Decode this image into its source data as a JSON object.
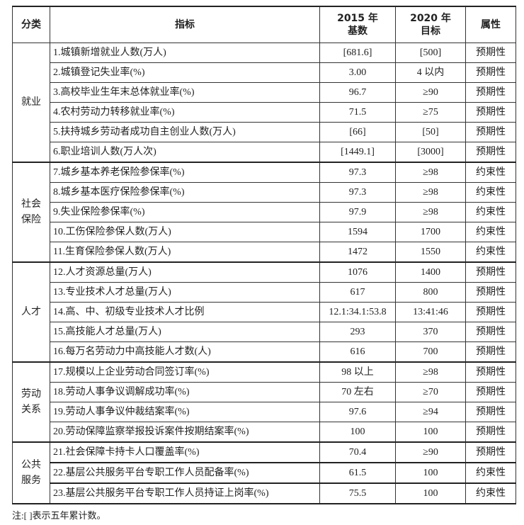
{
  "header": {
    "category": "分类",
    "indicator": "指标",
    "base_line1": "2015 年",
    "base_line2": "基数",
    "target_line1": "2020 年",
    "target_line2": "目标",
    "attribute": "属性"
  },
  "groups": [
    {
      "name_lines": [
        "就业"
      ],
      "rows": [
        {
          "indicator": "1.城镇新增就业人数(万人)",
          "base": "[681.6]",
          "target": "[500]",
          "attribute": "预期性"
        },
        {
          "indicator": "2.城镇登记失业率(%)",
          "base": "3.00",
          "target": "4 以内",
          "attribute": "预期性"
        },
        {
          "indicator": "3.高校毕业生年末总体就业率(%)",
          "base": "96.7",
          "target": "≥90",
          "attribute": "预期性"
        },
        {
          "indicator": "4.农村劳动力转移就业率(%)",
          "base": "71.5",
          "target": "≥75",
          "attribute": "预期性"
        },
        {
          "indicator": "5.扶持城乡劳动者成功自主创业人数(万人)",
          "base": "[66]",
          "target": "[50]",
          "attribute": "预期性"
        },
        {
          "indicator": "6.职业培训人数(万人次)",
          "base": "[1449.1]",
          "target": "[3000]",
          "attribute": "预期性"
        }
      ]
    },
    {
      "name_lines": [
        "社会",
        "保险"
      ],
      "rows": [
        {
          "indicator": "7.城乡基本养老保险参保率(%)",
          "base": "97.3",
          "target": "≥98",
          "attribute": "约束性"
        },
        {
          "indicator": "8.城乡基本医疗保险参保率(%)",
          "base": "97.3",
          "target": "≥98",
          "attribute": "约束性"
        },
        {
          "indicator": "9.失业保险参保率(%)",
          "base": "97.9",
          "target": "≥98",
          "attribute": "约束性"
        },
        {
          "indicator": "10.工伤保险参保人数(万人)",
          "base": "1594",
          "target": "1700",
          "attribute": "约束性"
        },
        {
          "indicator": "11.生育保险参保人数(万人)",
          "base": "1472",
          "target": "1550",
          "attribute": "约束性"
        }
      ]
    },
    {
      "name_lines": [
        "人才"
      ],
      "rows": [
        {
          "indicator": "12.人才资源总量(万人)",
          "base": "1076",
          "target": "1400",
          "attribute": "预期性"
        },
        {
          "indicator": "13.专业技术人才总量(万人)",
          "base": "617",
          "target": "800",
          "attribute": "预期性"
        },
        {
          "indicator": "14.高、中、初级专业技术人才比例",
          "base": "12.1:34.1:53.8",
          "target": "13:41:46",
          "attribute": "预期性"
        },
        {
          "indicator": "15.高技能人才总量(万人)",
          "base": "293",
          "target": "370",
          "attribute": "预期性"
        },
        {
          "indicator": "16.每万名劳动力中高技能人才数(人)",
          "base": "616",
          "target": "700",
          "attribute": "预期性"
        }
      ]
    },
    {
      "name_lines": [
        "劳动",
        "关系"
      ],
      "rows": [
        {
          "indicator": "17.规模以上企业劳动合同签订率(%)",
          "base": "98 以上",
          "target": "≥98",
          "attribute": "预期性"
        },
        {
          "indicator": "18.劳动人事争议调解成功率(%)",
          "base": "70 左右",
          "target": "≥70",
          "attribute": "预期性"
        },
        {
          "indicator": "19.劳动人事争议仲裁结案率(%)",
          "base": "97.6",
          "target": "≥94",
          "attribute": "预期性"
        },
        {
          "indicator": "20.劳动保障监察举报投诉案件按期结案率(%)",
          "base": "100",
          "target": "100",
          "attribute": "预期性"
        }
      ]
    },
    {
      "name_lines": [
        "公共",
        "服务"
      ],
      "rows": [
        {
          "indicator": "21.社会保障卡持卡人口覆盖率(%)",
          "base": "70.4",
          "target": "≥90",
          "attribute": "预期性"
        },
        {
          "indicator": "22.基层公共服务平台专职工作人员配备率(%)",
          "base": "61.5",
          "target": "100",
          "attribute": "约束性"
        },
        {
          "indicator": "23.基层公共服务平台专职工作人员持证上岗率(%)",
          "base": "75.5",
          "target": "100",
          "attribute": "约束性"
        }
      ]
    }
  ],
  "note": "注:[    ]表示五年累计数。"
}
